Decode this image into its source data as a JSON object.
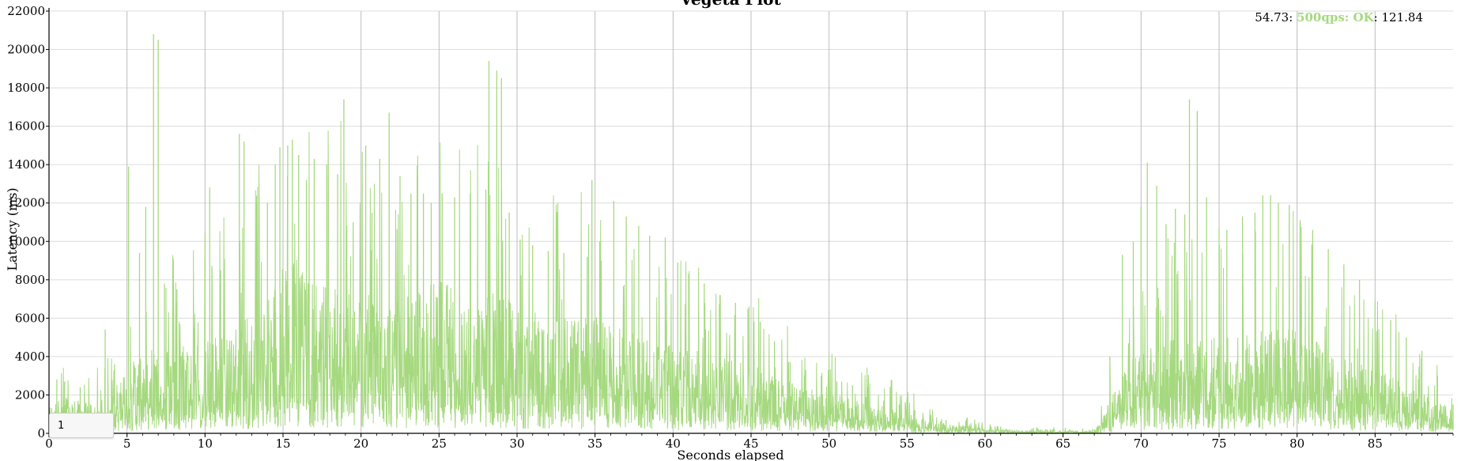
{
  "chart_data": {
    "type": "line",
    "title": "Vegeta Plot",
    "xlabel": "Seconds elapsed",
    "ylabel": "Latency (ms)",
    "xlim": [
      0,
      90
    ],
    "ylim": [
      0,
      22000
    ],
    "x_ticks": [
      0,
      5,
      10,
      15,
      20,
      25,
      30,
      35,
      40,
      45,
      50,
      55,
      60,
      65,
      70,
      75,
      80,
      85
    ],
    "y_ticks": [
      0,
      2000,
      4000,
      6000,
      8000,
      10000,
      12000,
      14000,
      16000,
      18000,
      20000,
      22000
    ],
    "grid": true,
    "legend_position": "top-right",
    "series": [
      {
        "name": "500qps: OK",
        "color": "#a6d97f",
        "envelope": [
          [
            0,
            1000
          ],
          [
            1,
            1400
          ],
          [
            2,
            1200
          ],
          [
            3,
            1100
          ],
          [
            4,
            1500
          ],
          [
            5,
            2500
          ],
          [
            6,
            3000
          ],
          [
            7,
            3500
          ],
          [
            8,
            3200
          ],
          [
            9,
            3600
          ],
          [
            10,
            3400
          ],
          [
            12,
            4200
          ],
          [
            14,
            5000
          ],
          [
            15,
            6500
          ],
          [
            16,
            6800
          ],
          [
            17,
            5500
          ],
          [
            18,
            5600
          ],
          [
            20,
            5200
          ],
          [
            22,
            5000
          ],
          [
            24,
            5400
          ],
          [
            25,
            5800
          ],
          [
            27,
            5000
          ],
          [
            28,
            5500
          ],
          [
            30,
            4800
          ],
          [
            32,
            4300
          ],
          [
            34,
            4300
          ],
          [
            35,
            4500
          ],
          [
            37,
            3800
          ],
          [
            40,
            3300
          ],
          [
            42,
            3000
          ],
          [
            45,
            2600
          ],
          [
            47,
            2000
          ],
          [
            50,
            1500
          ],
          [
            52,
            1200
          ],
          [
            55,
            800
          ],
          [
            57,
            400
          ],
          [
            60,
            200
          ],
          [
            62,
            120
          ],
          [
            65,
            100
          ],
          [
            67,
            80
          ],
          [
            68,
            1200
          ],
          [
            69,
            2600
          ],
          [
            70,
            3000
          ],
          [
            72,
            3600
          ],
          [
            74,
            3800
          ],
          [
            75,
            3600
          ],
          [
            77,
            3700
          ],
          [
            79,
            4000
          ],
          [
            80,
            3900
          ],
          [
            82,
            3200
          ],
          [
            84,
            2700
          ],
          [
            86,
            2200
          ],
          [
            88,
            1500
          ],
          [
            90,
            900
          ]
        ],
        "peaks": [
          [
            0.5,
            2800
          ],
          [
            1.0,
            2700
          ],
          [
            2.0,
            2400
          ],
          [
            3.6,
            5400
          ],
          [
            4.2,
            3600
          ],
          [
            5.1,
            13900
          ],
          [
            5.8,
            9400
          ],
          [
            6.2,
            11800
          ],
          [
            6.7,
            20800
          ],
          [
            7.0,
            20500
          ],
          [
            7.4,
            7800
          ],
          [
            8.2,
            7500
          ],
          [
            9.3,
            5500
          ],
          [
            10.0,
            10500
          ],
          [
            10.3,
            12800
          ],
          [
            11.0,
            8500
          ],
          [
            12.2,
            15600
          ],
          [
            12.5,
            15200
          ],
          [
            13.3,
            12000
          ],
          [
            14.0,
            12000
          ],
          [
            14.5,
            14000
          ],
          [
            14.8,
            14900
          ],
          [
            15.3,
            15000
          ],
          [
            15.6,
            15300
          ],
          [
            16.0,
            14500
          ],
          [
            16.5,
            13200
          ],
          [
            17.0,
            14300
          ],
          [
            17.8,
            14000
          ],
          [
            18.5,
            13500
          ],
          [
            18.9,
            17400
          ],
          [
            19.5,
            11000
          ],
          [
            20.3,
            15000
          ],
          [
            20.7,
            11500
          ],
          [
            21.2,
            14300
          ],
          [
            21.8,
            16700
          ],
          [
            22.5,
            13400
          ],
          [
            23.2,
            12500
          ],
          [
            24.0,
            12500
          ],
          [
            24.5,
            12000
          ],
          [
            25.2,
            12500
          ],
          [
            26.0,
            12300
          ],
          [
            27.0,
            12500
          ],
          [
            28.0,
            12700
          ],
          [
            28.2,
            19400
          ],
          [
            28.7,
            18900
          ],
          [
            29.0,
            18500
          ],
          [
            29.5,
            11500
          ],
          [
            30.2,
            10100
          ],
          [
            31.0,
            9800
          ],
          [
            32.0,
            9500
          ],
          [
            33.0,
            9400
          ],
          [
            34.5,
            9200
          ],
          [
            34.8,
            13200
          ],
          [
            35.3,
            10000
          ],
          [
            36.2,
            12100
          ],
          [
            37.0,
            11300
          ],
          [
            37.8,
            10800
          ],
          [
            38.5,
            10300
          ],
          [
            39.5,
            10200
          ],
          [
            40.3,
            8900
          ],
          [
            41.0,
            8300
          ],
          [
            42.0,
            7800
          ],
          [
            43.0,
            7200
          ],
          [
            44.0,
            6800
          ],
          [
            44.8,
            6500
          ],
          [
            45.6,
            5800
          ],
          [
            46.5,
            4800
          ],
          [
            47.5,
            3700
          ],
          [
            48.5,
            3300
          ],
          [
            49.5,
            3000
          ],
          [
            50.5,
            2700
          ],
          [
            51.5,
            2500
          ],
          [
            52.5,
            2400
          ],
          [
            53.5,
            1700
          ],
          [
            54.5,
            1500
          ],
          [
            55.5,
            1200
          ],
          [
            56.5,
            900
          ],
          [
            57.5,
            700
          ],
          [
            59.0,
            450
          ],
          [
            61.0,
            350
          ],
          [
            63.0,
            250
          ],
          [
            65.0,
            220
          ],
          [
            67.0,
            200
          ],
          [
            68.0,
            4000
          ],
          [
            68.8,
            9300
          ],
          [
            69.5,
            10000
          ],
          [
            70.0,
            11800
          ],
          [
            70.4,
            14100
          ],
          [
            71.0,
            12900
          ],
          [
            71.6,
            10900
          ],
          [
            72.2,
            11700
          ],
          [
            72.8,
            11400
          ],
          [
            73.1,
            17400
          ],
          [
            73.6,
            16800
          ],
          [
            74.2,
            12300
          ],
          [
            75.0,
            10700
          ],
          [
            75.5,
            10600
          ],
          [
            76.5,
            11300
          ],
          [
            77.3,
            11500
          ],
          [
            77.8,
            12400
          ],
          [
            78.3,
            12400
          ],
          [
            78.8,
            12000
          ],
          [
            79.5,
            11900
          ],
          [
            80.2,
            11100
          ],
          [
            81.0,
            10600
          ],
          [
            82.0,
            9600
          ],
          [
            83.0,
            8800
          ],
          [
            84.0,
            8000
          ],
          [
            85.0,
            6900
          ],
          [
            86.0,
            5900
          ],
          [
            87.0,
            5000
          ],
          [
            88.0,
            4300
          ],
          [
            89.0,
            3000
          ],
          [
            90.0,
            1500
          ]
        ]
      }
    ],
    "legend": {
      "x_value": "54.73",
      "series_label": "500qps: OK",
      "y_value": "121.84"
    },
    "range_selector_value": "1"
  }
}
